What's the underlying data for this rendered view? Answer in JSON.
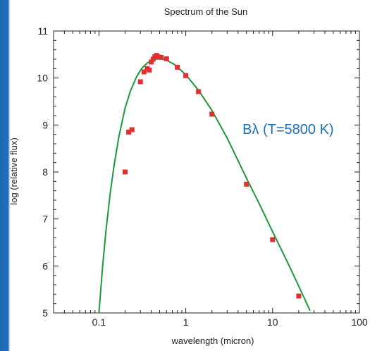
{
  "chart_data": {
    "type": "scatter",
    "title": "Spectrum of the Sun",
    "xlabel": "wavelength (micron)",
    "ylabel": "log (relative flux)",
    "xscale": "log",
    "xlim": [
      0.03,
      100
    ],
    "ylim": [
      5,
      11
    ],
    "x_ticks": [
      {
        "value": 0.1,
        "label": "0.1"
      },
      {
        "value": 1,
        "label": "1"
      },
      {
        "value": 10,
        "label": "10"
      },
      {
        "value": 100,
        "label": "100"
      }
    ],
    "y_ticks": [
      {
        "value": 5,
        "label": "5"
      },
      {
        "value": 6,
        "label": "6"
      },
      {
        "value": 7,
        "label": "7"
      },
      {
        "value": 8,
        "label": "8"
      },
      {
        "value": 9,
        "label": "9"
      },
      {
        "value": 10,
        "label": "10"
      },
      {
        "value": 11,
        "label": "11"
      }
    ],
    "grid": false,
    "series": [
      {
        "kind": "points",
        "color": "#e03030",
        "x": [
          0.2,
          0.22,
          0.24,
          0.3,
          0.33,
          0.36,
          0.38,
          0.4,
          0.42,
          0.44,
          0.46,
          0.48,
          0.52,
          0.6,
          0.8,
          1.0,
          1.4,
          2.0,
          5.0,
          10.0,
          20.0
        ],
        "y": [
          8.0,
          8.85,
          8.9,
          9.92,
          10.13,
          10.2,
          10.17,
          10.34,
          10.4,
          10.45,
          10.48,
          10.45,
          10.44,
          10.41,
          10.23,
          10.05,
          9.71,
          9.23,
          7.74,
          6.56,
          5.36
        ]
      },
      {
        "kind": "curve",
        "color": "#1a9a3a",
        "x": [
          0.1,
          0.11,
          0.12,
          0.135,
          0.15,
          0.17,
          0.2,
          0.23,
          0.27,
          0.31,
          0.36,
          0.42,
          0.5,
          0.6,
          0.75,
          1.0,
          1.4,
          2.0,
          3.0,
          5.0,
          7.0,
          10.0,
          15.0,
          20.0,
          27.0
        ],
        "y": [
          5.0,
          5.97,
          6.73,
          7.56,
          8.16,
          8.76,
          9.36,
          9.72,
          10.02,
          10.2,
          10.32,
          10.39,
          10.41,
          10.38,
          10.28,
          10.07,
          9.74,
          9.31,
          8.72,
          7.87,
          7.33,
          6.73,
          6.06,
          5.57,
          5.05
        ]
      }
    ],
    "annotations": [
      {
        "text": "Bλ (T=5800 K)",
        "x": 4.5,
        "y": 8.9
      }
    ]
  }
}
